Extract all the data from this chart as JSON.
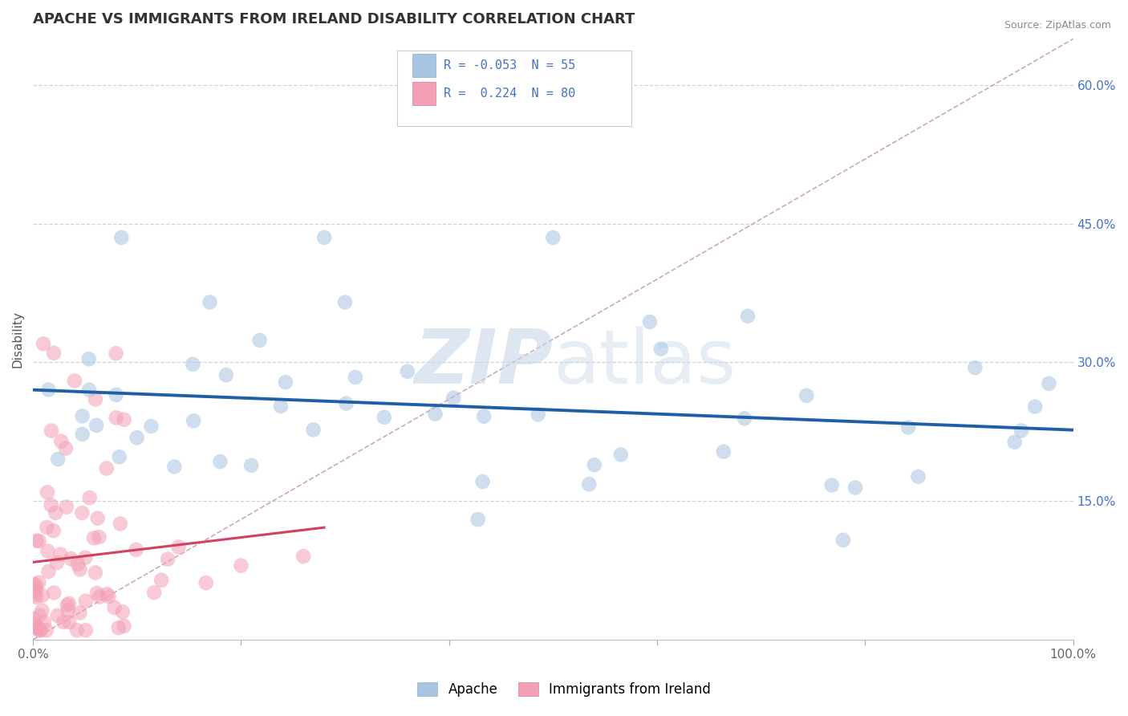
{
  "title": "APACHE VS IMMIGRANTS FROM IRELAND DISABILITY CORRELATION CHART",
  "source": "Source: ZipAtlas.com",
  "ylabel": "Disability",
  "xlim": [
    0.0,
    1.0
  ],
  "ylim": [
    0.0,
    0.65
  ],
  "x_tick_positions": [
    0.0,
    0.2,
    0.4,
    0.6,
    0.8,
    1.0
  ],
  "x_tick_labels": [
    "0.0%",
    "",
    "",
    "",
    "",
    "100.0%"
  ],
  "y_ticks_right": [
    0.15,
    0.3,
    0.45,
    0.6
  ],
  "y_tick_labels_right": [
    "15.0%",
    "30.0%",
    "45.0%",
    "60.0%"
  ],
  "apache_color": "#a8c4e0",
  "ireland_color": "#f4a0b4",
  "apache_line_color": "#1f5fa6",
  "ireland_line_color": "#d44060",
  "diag_line_color": "#c8a0a8",
  "right_tick_color": "#4472c4",
  "legend_r_apache": "R = -0.053",
  "legend_n_apache": "N = 55",
  "legend_r_ireland": "R =  0.224",
  "legend_n_ireland": "N = 80",
  "apache_label": "Apache",
  "ireland_label": "Immigrants from Ireland",
  "apache_R": -0.053,
  "ireland_R": 0.224,
  "watermark_text": "ZIPatlas",
  "watermark_color": "#c8d8e8",
  "grid_color": "#c0c8d0",
  "spine_color": "#d0d0d0"
}
